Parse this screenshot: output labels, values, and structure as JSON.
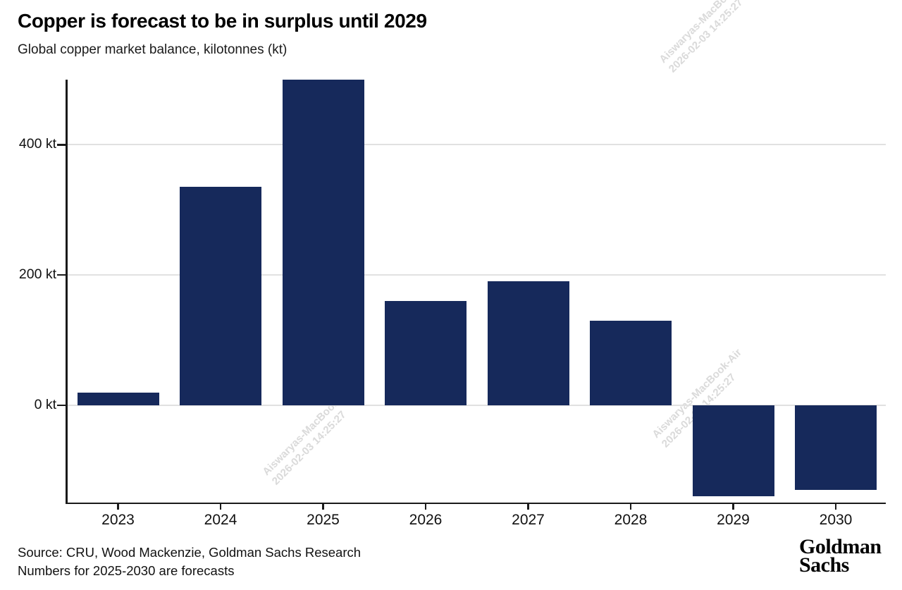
{
  "header": {
    "title": "Copper is forecast to be in surplus until 2029",
    "subtitle": "Global copper market balance, kilotonnes (kt)"
  },
  "chart_data": {
    "type": "bar",
    "title": "Copper is forecast to be in surplus until 2029",
    "xlabel": "",
    "ylabel": "Global copper market balance, kilotonnes (kt)",
    "categories": [
      "2023",
      "2024",
      "2025",
      "2026",
      "2027",
      "2028",
      "2029",
      "2030"
    ],
    "values": [
      20,
      335,
      500,
      160,
      190,
      130,
      -140,
      -130
    ],
    "unit": "kt",
    "ylim": [
      -149,
      500
    ],
    "y_ticks": [
      {
        "value": 0,
        "label": "0 kt"
      },
      {
        "value": 200,
        "label": "200 kt"
      },
      {
        "value": 400,
        "label": "400 kt"
      }
    ],
    "grid": "horizontal",
    "legend": "none",
    "bar_color": "#16295b"
  },
  "watermark": {
    "line1": "Aiswaryas-MacBook-Air",
    "line2": "2026-02-03 14:25:27"
  },
  "footer": {
    "source_line1": "Source: CRU, Wood Mackenzie, Goldman Sachs Research",
    "source_line2": "Numbers for 2025-2030 are forecasts",
    "logo_line1": "Goldman",
    "logo_line2": "Sachs"
  },
  "colors": {
    "bar": "#16295b",
    "axis": "#1a1a1a",
    "gridline": "#e1e1e1",
    "text": "#111111",
    "watermark": "#dadada"
  }
}
